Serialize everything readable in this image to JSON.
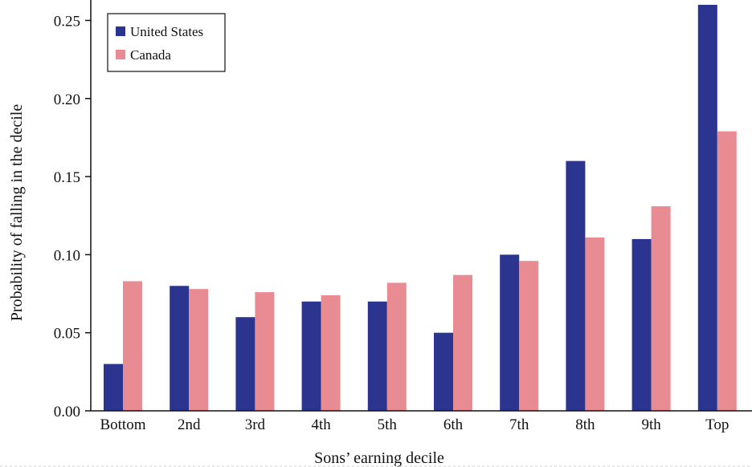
{
  "chart_data": {
    "type": "bar",
    "title": "",
    "xlabel": "Sons’ earning decile",
    "ylabel": "Probability of falling in the decile",
    "categories": [
      "Bottom",
      "2nd",
      "3rd",
      "4th",
      "5th",
      "6th",
      "7th",
      "8th",
      "9th",
      "Top"
    ],
    "series": [
      {
        "name": "United States",
        "color": "#2b3590",
        "values": [
          0.03,
          0.08,
          0.06,
          0.07,
          0.07,
          0.05,
          0.1,
          0.16,
          0.11,
          0.26
        ]
      },
      {
        "name": "Canada",
        "color": "#e88b93",
        "values": [
          0.083,
          0.078,
          0.076,
          0.074,
          0.082,
          0.087,
          0.096,
          0.111,
          0.131,
          0.179
        ]
      }
    ],
    "ylim": [
      0,
      0.26
    ],
    "yticks": [
      "0.00",
      "0.05",
      "0.10",
      "0.15",
      "0.20",
      "0.25"
    ],
    "grid": false,
    "legend_position": "top-left"
  }
}
